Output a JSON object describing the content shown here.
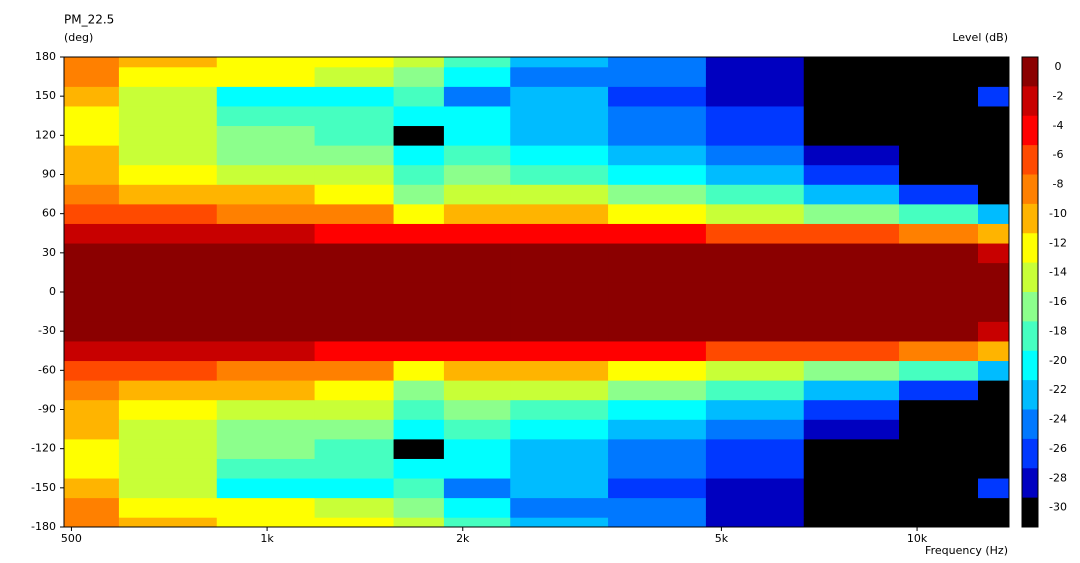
{
  "chart_data": {
    "type": "heatmap",
    "title": "PM_22.5",
    "y_label": "(deg)",
    "x_label": "Frequency (Hz)",
    "colorbar_label": "Level (dB)",
    "log_x": true,
    "x": [
      500,
      700,
      1000,
      1400,
      1750,
      2000,
      2800,
      4000,
      5600,
      8000,
      11000,
      14000
    ],
    "y": [
      -180,
      -165,
      -150,
      -135,
      -120,
      -105,
      -90,
      -75,
      -60,
      -45,
      -30,
      -15,
      0,
      15,
      30,
      45,
      60,
      75,
      90,
      105,
      120,
      135,
      150,
      165,
      180
    ],
    "z": [
      [
        -7,
        -10,
        -11,
        -12,
        -13,
        -18,
        -22,
        -24,
        -28,
        -30,
        -30,
        -30
      ],
      [
        -8,
        -11,
        -12,
        -14,
        -16,
        -19,
        -24,
        -24,
        -28,
        -30,
        -30,
        -30
      ],
      [
        -10,
        -13,
        -20,
        -20,
        -18,
        -24,
        -22,
        -26,
        -28,
        -30,
        -29,
        -26
      ],
      [
        -11,
        -14,
        -17,
        -18,
        -19,
        -20,
        -22,
        -24,
        -26,
        -30,
        -30,
        -30
      ],
      [
        -11,
        -14,
        -16,
        -17,
        -30,
        -19,
        -21,
        -23,
        -25,
        -30,
        -30,
        -30
      ],
      [
        -10,
        -13,
        -15,
        -16,
        -20,
        -18,
        -20,
        -22,
        -24,
        -28,
        -30,
        -30
      ],
      [
        -9,
        -11,
        -13,
        -14,
        -18,
        -16,
        -18,
        -20,
        -22,
        -25,
        -29,
        -30
      ],
      [
        -8,
        -9,
        -10,
        -11,
        -16,
        -13,
        -14,
        -16,
        -18,
        -21,
        -25,
        -30
      ],
      [
        -5,
        -6,
        -7,
        -8,
        -12,
        -9,
        -10,
        -11,
        -13,
        -15,
        -18,
        -22
      ],
      [
        -1,
        -2,
        -2,
        -3,
        -4,
        -3,
        -3,
        -4,
        -5,
        -6,
        -8,
        -10
      ],
      [
        0,
        0,
        0,
        0,
        0,
        0,
        0,
        0,
        0,
        0,
        0,
        -1
      ],
      [
        0,
        0,
        0,
        0,
        0,
        0,
        0,
        0,
        0,
        0,
        0,
        0
      ],
      [
        0,
        0,
        0,
        0,
        0,
        0,
        0,
        0,
        0,
        0,
        0,
        0
      ],
      [
        0,
        0,
        0,
        0,
        0,
        0,
        0,
        0,
        0,
        0,
        0,
        0
      ],
      [
        0,
        0,
        0,
        0,
        0,
        0,
        0,
        0,
        0,
        0,
        0,
        -1
      ],
      [
        -1,
        -2,
        -2,
        -3,
        -4,
        -3,
        -3,
        -4,
        -5,
        -6,
        -8,
        -10
      ],
      [
        -5,
        -6,
        -7,
        -8,
        -12,
        -9,
        -10,
        -11,
        -13,
        -15,
        -18,
        -22
      ],
      [
        -8,
        -9,
        -10,
        -11,
        -16,
        -13,
        -14,
        -16,
        -18,
        -21,
        -25,
        -30
      ],
      [
        -9,
        -11,
        -13,
        -14,
        -18,
        -16,
        -18,
        -20,
        -22,
        -25,
        -29,
        -30
      ],
      [
        -10,
        -13,
        -15,
        -16,
        -20,
        -18,
        -20,
        -22,
        -24,
        -28,
        -30,
        -30
      ],
      [
        -11,
        -14,
        -16,
        -17,
        -30,
        -19,
        -21,
        -23,
        -25,
        -30,
        -30,
        -30
      ],
      [
        -11,
        -14,
        -17,
        -18,
        -19,
        -20,
        -22,
        -24,
        -26,
        -30,
        -30,
        -30
      ],
      [
        -10,
        -13,
        -20,
        -20,
        -18,
        -24,
        -22,
        -26,
        -28,
        -30,
        -29,
        -26
      ],
      [
        -8,
        -11,
        -12,
        -14,
        -16,
        -19,
        -24,
        -24,
        -28,
        -30,
        -30,
        -30
      ],
      [
        -7,
        -10,
        -11,
        -12,
        -13,
        -18,
        -22,
        -24,
        -28,
        -30,
        -30,
        -30
      ]
    ],
    "xlim": [
      487,
      13850
    ],
    "ylim": [
      -180,
      180
    ],
    "xticks": [
      {
        "value": 500,
        "label": "500"
      },
      {
        "value": 1000,
        "label": "1k"
      },
      {
        "value": 2000,
        "label": "2k"
      },
      {
        "value": 5000,
        "label": "5k"
      },
      {
        "value": 10000,
        "label": "10k"
      }
    ],
    "yticks": [
      -180,
      -150,
      -120,
      -90,
      -60,
      -30,
      0,
      30,
      60,
      90,
      120,
      150,
      180
    ],
    "colorbar": {
      "levels": [
        0,
        -2,
        -4,
        -6,
        -8,
        -10,
        -12,
        -14,
        -16,
        -18,
        -20,
        -22,
        -24,
        -26,
        -28,
        -30
      ],
      "colors": [
        "#8b0000",
        "#c80000",
        "#ff0000",
        "#ff4a00",
        "#ff8000",
        "#ffb400",
        "#ffff00",
        "#c8ff37",
        "#8cff8c",
        "#46ffc0",
        "#00ffff",
        "#00bcff",
        "#0078ff",
        "#0038ff",
        "#0000c0",
        "#000000"
      ]
    }
  }
}
